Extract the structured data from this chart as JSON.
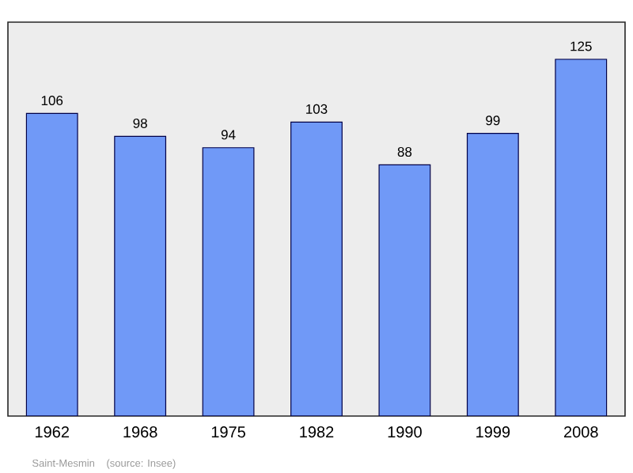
{
  "chart_data": {
    "type": "bar",
    "categories": [
      "1962",
      "1968",
      "1975",
      "1982",
      "1990",
      "1999",
      "2008"
    ],
    "values": [
      106,
      98,
      94,
      103,
      88,
      99,
      125
    ],
    "color": "#7099f7",
    "ylim": [
      0,
      138
    ],
    "data_labels": true,
    "tick_labels": "x",
    "grid": false,
    "annotations": [
      "Saint-Mesmin",
      "(source: Insee)"
    ]
  }
}
